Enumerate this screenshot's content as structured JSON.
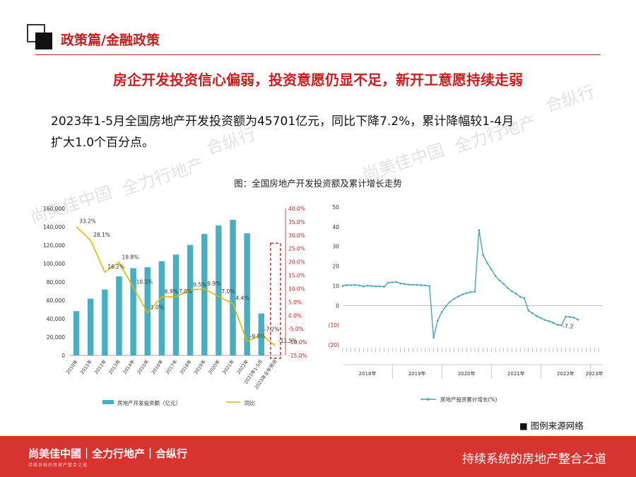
{
  "header": {
    "section_title": "政策篇/金融政策"
  },
  "headline": "房企开发投资信心偏弱，投资意愿仍显不足，新开工意愿持续走弱",
  "paragraph_line1": "2023年1-5月全国房地产开发投资额为45701亿元，同比下降7.2%，累计降幅较1-4月",
  "paragraph_line2": "扩大1.0个百分点。",
  "figure_caption": "图：全国房地产开发投资额及累计增长走势",
  "source_note": "■ 图例来源网络",
  "watermarks": [
    "尚美佳中国",
    "全力行地产",
    "合纵行"
  ],
  "footer": {
    "brand": "尚美佳中國｜全力行地产｜合纵行",
    "brand_sub": "持续系统的房地产整合之道",
    "slogan": "持续系统的房地产整合之道"
  },
  "colors": {
    "accent": "#c81e1e",
    "bar": "#4aaec2",
    "line": "#e5b800",
    "footer": "#d7332f",
    "teal": "#48a3b5"
  },
  "chart_data": [
    {
      "type": "bar",
      "categories": [
        "2010年",
        "2011年",
        "2012年",
        "2013年",
        "2014年",
        "2015年",
        "2016年",
        "2017年",
        "2018年",
        "2019年",
        "2020年",
        "2021年",
        "2022年",
        "2023年1-5月",
        "2023年全年预测"
      ],
      "series": [
        {
          "name": "房地产开发投资额（亿元）",
          "values": [
            48259,
            61740,
            71804,
            86013,
            95036,
            95979,
            102581,
            109799,
            120264,
            132194,
            141443,
            147602,
            132895,
            45701,
            null
          ],
          "axis": "left"
        },
        {
          "name": "同比",
          "values": [
            33.2,
            28.1,
            16.2,
            19.8,
            10.5,
            1.0,
            6.9,
            7.0,
            9.5,
            9.9,
            7.0,
            4.4,
            -9.8,
            -7.2,
            -11.5
          ],
          "axis": "right"
        }
      ],
      "point_labels": [
        "33.2%",
        "28.1%",
        "16.2%",
        "19.8%",
        "10.5%",
        "1.0%",
        "6.9%",
        "7.0%",
        "9.5%",
        "9.9%",
        "7.0%",
        "4.4%",
        "-9.8%",
        "-7.2%",
        "-11.5%"
      ],
      "y_left": {
        "min": 0,
        "max": 160000,
        "ticks": [
          "0",
          "20,000",
          "40,000",
          "60,000",
          "80,000",
          "100,000",
          "120,000",
          "140,000",
          "160,000"
        ]
      },
      "y_right": {
        "min": -15,
        "max": 40,
        "ticks": [
          "-15.0%",
          "-10.0%",
          "-5.0%",
          "0.0%",
          "5.0%",
          "10.0%",
          "15.0%",
          "20.0%",
          "25.0%",
          "30.0%",
          "35.0%",
          "40.0%"
        ]
      },
      "highlight_category": "2023年全年预测",
      "legend": [
        "房地产开发投资额（亿元）",
        "同比"
      ]
    },
    {
      "type": "line",
      "series_name": "房地产投资累计增长(%)",
      "y_ticks": [
        "50",
        "40",
        "30",
        "20",
        "10",
        "0",
        "(10)",
        "(20)"
      ],
      "ylim": [
        -20,
        50
      ],
      "year_labels": [
        "2018年",
        "2019年",
        "2020年",
        "2021年",
        "2022年",
        "2023年"
      ],
      "x_start_month": "2018-02",
      "values": [
        9.9,
        10.4,
        10.3,
        10.5,
        10.2,
        9.7,
        10.1,
        9.9,
        9.7,
        9.7,
        9.5,
        11.6,
        11.8,
        11.9,
        11.2,
        10.9,
        10.6,
        10.5,
        10.5,
        10.3,
        10.2,
        9.9,
        -16.3,
        -7.7,
        -3.3,
        -0.3,
        1.9,
        3.4,
        4.6,
        5.6,
        6.3,
        6.8,
        7.0,
        38.3,
        25.6,
        21.6,
        18.3,
        15.0,
        12.7,
        10.9,
        8.8,
        7.2,
        6.0,
        4.4,
        3.7,
        -2.7,
        -4.0,
        -5.4,
        -6.4,
        -7.4,
        -8.0,
        -8.8,
        -9.8,
        -10.0,
        -5.7,
        -5.8,
        -6.2,
        -7.2
      ],
      "end_label": "-7.2"
    }
  ]
}
